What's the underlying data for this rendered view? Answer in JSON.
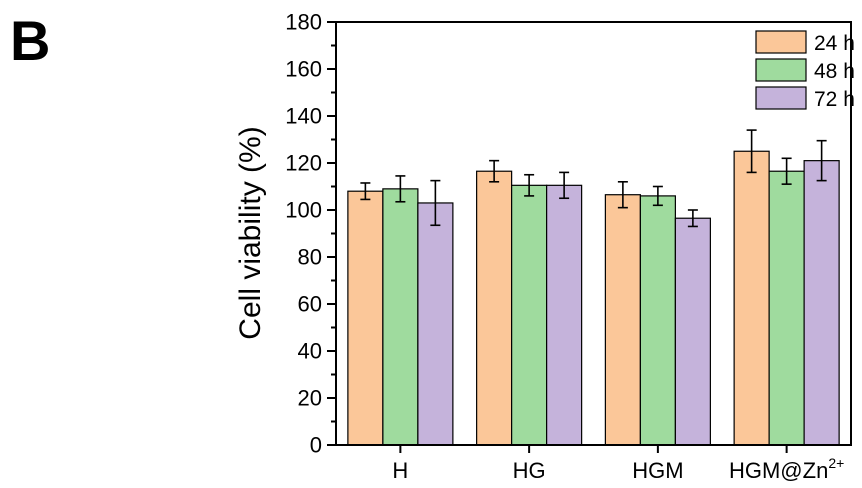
{
  "panel_label": "B",
  "chart_data": {
    "type": "bar",
    "title": "",
    "xlabel": "",
    "ylabel": "Cell viability (%)",
    "ylim": [
      0,
      180
    ],
    "yticks": [
      0,
      20,
      40,
      60,
      80,
      100,
      120,
      140,
      160,
      180
    ],
    "categories": [
      {
        "base": "H",
        "sup": ""
      },
      {
        "base": "HG",
        "sup": ""
      },
      {
        "base": "HGM",
        "sup": ""
      },
      {
        "base": "HGM@Zn",
        "sup": "2+"
      }
    ],
    "series": [
      {
        "name": "24 h",
        "color": "#FBC799",
        "values": [
          108,
          116.5,
          106.5,
          125
        ],
        "errors": [
          3.5,
          4.5,
          5.5,
          9
        ]
      },
      {
        "name": "48 h",
        "color": "#9FDB9E",
        "values": [
          109,
          110.5,
          106,
          116.5
        ],
        "errors": [
          5.5,
          4.5,
          4,
          5.5
        ]
      },
      {
        "name": "72 h",
        "color": "#C5B3DB",
        "values": [
          103,
          110.5,
          96.5,
          121
        ],
        "errors": [
          9.5,
          5.5,
          3.5,
          8.5
        ]
      }
    ],
    "legend_position": "top-right",
    "grid": false
  }
}
